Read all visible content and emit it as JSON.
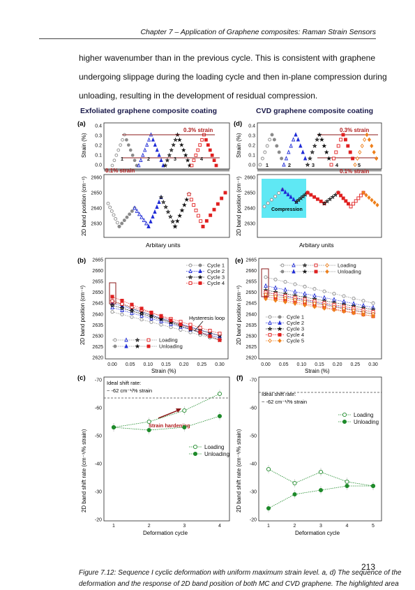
{
  "header": {
    "text": "Chapter 7 – Application of Graphene composites: Raman Strain Sensors"
  },
  "body_lines": [
    "higher wavenumber than in the previous cycle. This is consistent with graphene",
    "undergoing slippage during the loading cycle and then in-plane compression during",
    "unloading, resulting in the development of residual compression."
  ],
  "figure": {
    "title_left": "Exfoliated graphene composite coating",
    "title_right": "CVD graphene composite coating",
    "panel_labels": [
      "(a)",
      "(b)",
      "(c)",
      "(d)",
      "(e)",
      "(f)"
    ],
    "strain_axis_label": "Strain (%)",
    "band_axis_label": "2D band position (cm⁻¹)",
    "rate_axis_label": "2D band shift rate (cm⁻¹/% strain)",
    "arbitrary_units": "Arbitary units",
    "deformation_cycle": "Deformation cycle",
    "strain_ticks": [
      "0.4",
      "0.3",
      "0.2",
      "0.1",
      "0.0"
    ],
    "band_ticks_top": [
      "2660",
      "2650",
      "2640",
      "2630"
    ],
    "band_ticks_mid": [
      "2665",
      "2660",
      "2655",
      "2650",
      "2645",
      "2640",
      "2635",
      "2630",
      "2625",
      "2620"
    ],
    "x_strain_ticks": [
      "0.00",
      "0.05",
      "0.10",
      "0.15",
      "0.20",
      "0.25",
      "0.30"
    ],
    "rate_ticks": [
      "-70",
      "-60",
      "-50",
      "-40",
      "-30",
      "-20"
    ],
    "cycle_ticks_c": [
      "1",
      "2",
      "3",
      "4"
    ],
    "cycle_ticks_f": [
      "1",
      "2",
      "3",
      "4",
      "5"
    ],
    "annot_03_strain": "0.3% strain",
    "annot_01_strain": "0.1% strain",
    "cycle_numbers_a": [
      "1",
      "2",
      "3",
      "4"
    ],
    "cycle_numbers_d": [
      "1",
      "2",
      "3",
      "4",
      "5"
    ],
    "compression": "Compression",
    "hysteresis_loop": "Hysteresis loop",
    "legend_b": [
      "Cycle 1",
      "Cycle 2",
      "Cycle 3",
      "Cycle 4"
    ],
    "legend_e": [
      "Cycle 1",
      "Cycle 2",
      "Cycle 3",
      "Cycle 4",
      "Cycle 5"
    ],
    "loading": "Loading",
    "unloading": "Unloading",
    "ideal_shift_rate": "Ideal shift rate:",
    "ideal_value": "~ -62 cm⁻¹/% strain",
    "strain_hardening": "Strain hardening",
    "colors": {
      "grey": "#8a8a8a",
      "blue": "#1f2bd6",
      "black": "#111111",
      "red": "#e02020",
      "orange": "#ee7f1a",
      "green": "#1e8a2a",
      "cyan": "#5fe8f4",
      "darkred": "#8b1a1a"
    }
  },
  "chart_data": [
    {
      "type": "line",
      "panel": "(c)",
      "xlabel": "Deformation cycle",
      "ylabel": "2D band shift rate (cm⁻¹/% strain)",
      "x": [
        1,
        2,
        3,
        4
      ],
      "ylim": [
        -70,
        -20
      ],
      "series": [
        {
          "name": "Loading",
          "values": [
            -53,
            -55,
            -59,
            -65
          ]
        },
        {
          "name": "Unloading",
          "values": [
            -53,
            -52,
            -53,
            -57
          ]
        }
      ],
      "reference_line": -62
    },
    {
      "type": "line",
      "panel": "(f)",
      "xlabel": "Deformation cycle",
      "ylabel": "2D band shift rate (cm⁻¹/% strain)",
      "x": [
        1,
        2,
        3,
        4,
        5
      ],
      "ylim": [
        -70,
        -20
      ],
      "series": [
        {
          "name": "Loading",
          "values": [
            -38,
            -33,
            -37,
            -33.5,
            -32
          ]
        },
        {
          "name": "Unloading",
          "values": [
            -24,
            -29,
            -30.5,
            -32,
            -32
          ]
        }
      ],
      "reference_line": -62
    }
  ],
  "caption_lines": [
    "Figure 7.12: Sequence I cyclic deformation with uniform maximum strain level. a, d) The sequence of the",
    "deformation and the response of 2D band position of both MC and CVD graphene. The highlighted area"
  ],
  "page_number": "213"
}
